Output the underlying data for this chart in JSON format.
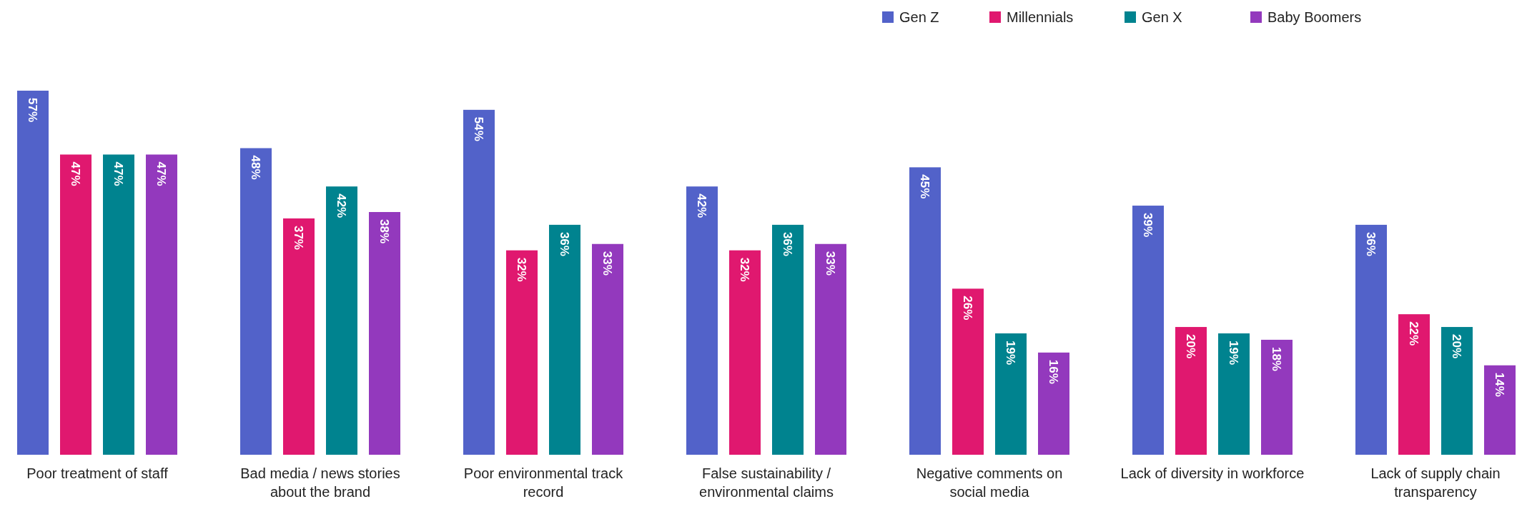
{
  "chart_data": {
    "type": "bar",
    "categories": [
      "Poor treatment of staff",
      "Bad media / news stories about the brand",
      "Poor environmental track record",
      "False sustainability / environmental claims",
      "Negative comments on social media",
      "Lack of diversity in workforce",
      "Lack of supply chain transparency"
    ],
    "series": [
      {
        "name": "Gen Z",
        "color": "#5262c9",
        "values": [
          57,
          48,
          54,
          42,
          45,
          39,
          36
        ],
        "value_labels": [
          "57%",
          "48%",
          "54%",
          "42%",
          "45%",
          "39%",
          "36%"
        ]
      },
      {
        "name": "Millennials",
        "color": "#e0186f",
        "values": [
          47,
          37,
          32,
          32,
          26,
          20,
          22
        ],
        "value_labels": [
          "47%",
          "37%",
          "32%",
          "32%",
          "26%",
          "20%",
          "22%"
        ]
      },
      {
        "name": "Gen X",
        "color": "#00838f",
        "values": [
          47,
          42,
          36,
          36,
          19,
          19,
          20
        ],
        "value_labels": [
          "47%",
          "42%",
          "36%",
          "36%",
          "19%",
          "19%",
          "20%"
        ]
      },
      {
        "name": "Baby Boomers",
        "color": "#9339bd",
        "values": [
          47,
          38,
          33,
          33,
          16,
          18,
          14
        ],
        "value_labels": [
          "47%",
          "38%",
          "33%",
          "33%",
          "16%",
          "18%",
          "14%"
        ]
      }
    ],
    "legend": "top right",
    "grid": false
  }
}
